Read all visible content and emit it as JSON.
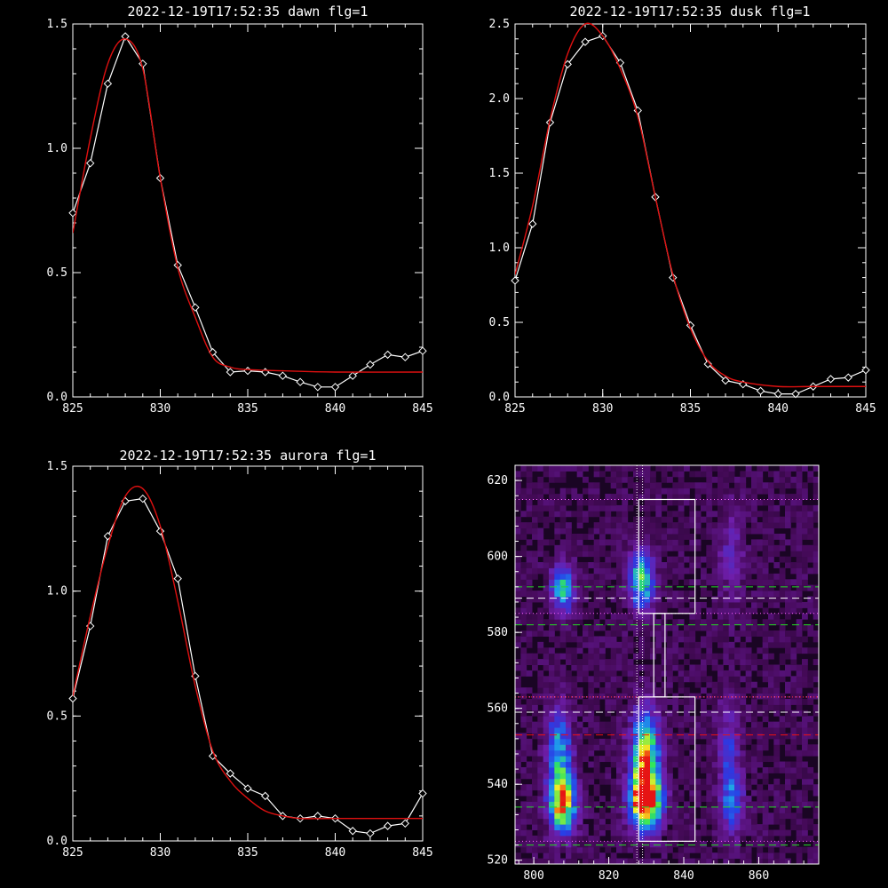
{
  "chart_data": [
    {
      "type": "line",
      "title": "2022-12-19T17:52:35 dawn flg=1",
      "xlim": [
        825,
        845
      ],
      "ylim": [
        0,
        1.5
      ],
      "xticks": [
        "825",
        "830",
        "835",
        "840",
        "845"
      ],
      "yticks": [
        "0.0",
        "0.5",
        "1.0",
        "1.5"
      ],
      "series": [
        {
          "style": "white-diamond",
          "x": [
            825,
            826,
            827,
            828,
            829,
            830,
            831,
            832,
            833,
            834,
            835,
            836,
            837,
            838,
            839,
            840,
            841,
            842,
            843,
            844,
            845
          ],
          "y": [
            0.74,
            0.94,
            1.26,
            1.45,
            1.34,
            0.88,
            0.53,
            0.36,
            0.18,
            0.1,
            0.105,
            0.1,
            0.085,
            0.06,
            0.04,
            0.04,
            0.085,
            0.13,
            0.17,
            0.16,
            0.185
          ]
        },
        {
          "style": "red-fit",
          "x": [
            825,
            826,
            827,
            828,
            829,
            830,
            831,
            832,
            833,
            834,
            835,
            837,
            840,
            845
          ],
          "y": [
            0.66,
            1.04,
            1.34,
            1.44,
            1.32,
            0.88,
            0.52,
            0.32,
            0.16,
            0.12,
            0.11,
            0.105,
            0.1,
            0.1
          ]
        }
      ]
    },
    {
      "type": "line",
      "title": "2022-12-19T17:52:35 dusk flg=1",
      "xlim": [
        825,
        845
      ],
      "ylim": [
        0,
        2.5
      ],
      "xticks": [
        "825",
        "830",
        "835",
        "840",
        "845"
      ],
      "yticks": [
        "0.0",
        "0.5",
        "1.0",
        "1.5",
        "2.0",
        "2.5"
      ],
      "series": [
        {
          "style": "white-diamond",
          "x": [
            825,
            826,
            827,
            828,
            829,
            830,
            831,
            832,
            833,
            834,
            835,
            836,
            837,
            838,
            839,
            840,
            841,
            842,
            843,
            844,
            845
          ],
          "y": [
            0.78,
            1.16,
            1.84,
            2.23,
            2.38,
            2.42,
            2.24,
            1.92,
            1.34,
            0.8,
            0.48,
            0.22,
            0.11,
            0.085,
            0.04,
            0.02,
            0.02,
            0.07,
            0.12,
            0.13,
            0.18
          ]
        },
        {
          "style": "red-fit",
          "x": [
            825,
            826,
            827,
            828,
            829,
            830,
            831,
            832,
            833,
            834,
            835,
            836,
            837,
            838,
            840,
            842,
            845
          ],
          "y": [
            0.82,
            1.28,
            1.86,
            2.3,
            2.5,
            2.42,
            2.2,
            1.88,
            1.34,
            0.82,
            0.46,
            0.24,
            0.14,
            0.1,
            0.07,
            0.07,
            0.07
          ]
        }
      ]
    },
    {
      "type": "line",
      "title": "2022-12-19T17:52:35 aurora flg=1",
      "xlim": [
        825,
        845
      ],
      "ylim": [
        0,
        1.5
      ],
      "xticks": [
        "825",
        "830",
        "835",
        "840",
        "845"
      ],
      "yticks": [
        "0.0",
        "0.5",
        "1.0",
        "1.5"
      ],
      "series": [
        {
          "style": "white-diamond",
          "x": [
            825,
            826,
            827,
            828,
            829,
            830,
            831,
            832,
            833,
            834,
            835,
            836,
            837,
            838,
            839,
            840,
            841,
            842,
            843,
            844,
            845
          ],
          "y": [
            0.57,
            0.86,
            1.22,
            1.36,
            1.37,
            1.24,
            1.05,
            0.66,
            0.34,
            0.27,
            0.21,
            0.18,
            0.1,
            0.09,
            0.1,
            0.09,
            0.04,
            0.03,
            0.06,
            0.07,
            0.19
          ]
        },
        {
          "style": "red-fit",
          "x": [
            825,
            826,
            827,
            828,
            829,
            830,
            831,
            832,
            833,
            834,
            835,
            836,
            837,
            838,
            840,
            845
          ],
          "y": [
            0.58,
            0.9,
            1.18,
            1.38,
            1.41,
            1.26,
            0.96,
            0.62,
            0.36,
            0.24,
            0.17,
            0.12,
            0.1,
            0.09,
            0.09,
            0.09
          ]
        }
      ]
    },
    {
      "type": "heatmap",
      "xlim": [
        795,
        876
      ],
      "ylim": [
        519,
        624
      ],
      "xticks": [
        "800",
        "820",
        "840",
        "860"
      ],
      "yticks": [
        "520",
        "540",
        "560",
        "580",
        "600",
        "620"
      ],
      "vertical_dotted_x": [
        827.5,
        829
      ],
      "dotted_magenta_y": [
        615,
        585,
        563,
        525
      ],
      "dashed_green_y": [
        592,
        582,
        534,
        524
      ],
      "dashed_white_y": [
        589,
        559
      ],
      "dashed_red_y": [
        553
      ],
      "white_box_top": {
        "x": [
          828,
          843
        ],
        "y": [
          585,
          615
        ]
      },
      "white_box_mid": {
        "x": [
          832,
          835
        ],
        "y": [
          563,
          585
        ]
      },
      "white_box_bottom": {
        "x": [
          828,
          843
        ],
        "y": [
          525,
          563
        ]
      },
      "blobs": [
        {
          "x": 807,
          "y": 591,
          "sx": 2.0,
          "sy": 4,
          "a": 0.55
        },
        {
          "x": 828,
          "y": 593,
          "sx": 2.2,
          "sy": 5,
          "a": 0.65
        },
        {
          "x": 807,
          "y": 534,
          "sx": 2.4,
          "sy": 5,
          "a": 0.8
        },
        {
          "x": 806,
          "y": 547,
          "sx": 2.2,
          "sy": 8,
          "a": 0.5
        },
        {
          "x": 829,
          "y": 535,
          "sx": 2.8,
          "sy": 5,
          "a": 1.0
        },
        {
          "x": 829,
          "y": 547,
          "sx": 2.6,
          "sy": 8,
          "a": 0.7
        },
        {
          "x": 852,
          "y": 535,
          "sx": 2.0,
          "sy": 6,
          "a": 0.35
        },
        {
          "x": 851,
          "y": 550,
          "sx": 2.0,
          "sy": 8,
          "a": 0.22
        },
        {
          "x": 852,
          "y": 600,
          "sx": 2.2,
          "sy": 9,
          "a": 0.16
        }
      ]
    }
  ]
}
